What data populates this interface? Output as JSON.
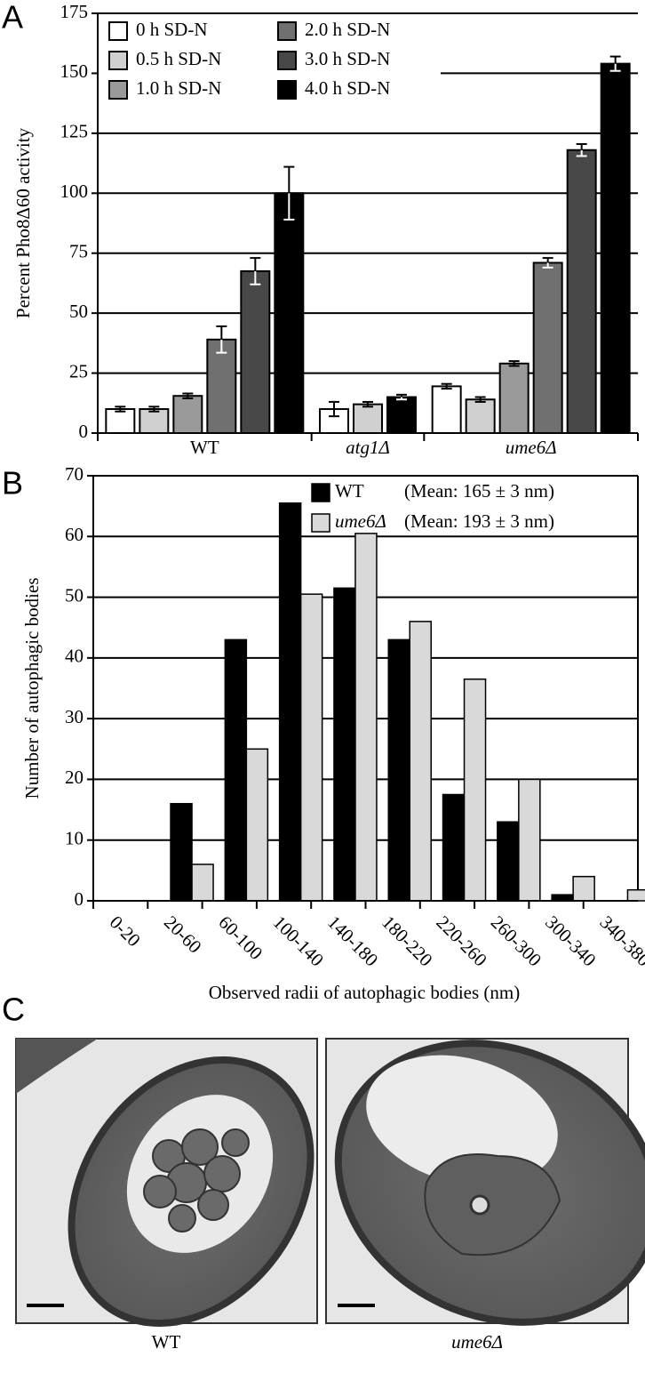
{
  "panel_labels": [
    "A",
    "B",
    "C"
  ],
  "chart_data": [
    {
      "type": "grouped_bar_error",
      "ylabel": "Percent Pho8Δ60 activity",
      "categories": [
        "WT",
        "atg1Δ",
        "ume6Δ"
      ],
      "series": [
        {
          "name": "0 h SD-N",
          "color": "#ffffff",
          "values": [
            10,
            10,
            19.5
          ],
          "errors": [
            1,
            3,
            1
          ]
        },
        {
          "name": "0.5 h SD-N",
          "color": "#d0d0d0",
          "values": [
            10,
            12,
            14
          ],
          "errors": [
            1,
            1,
            1
          ]
        },
        {
          "name": "1.0 h SD-N",
          "color": "#9a9a9a",
          "values": [
            15.5,
            null,
            29
          ],
          "errors": [
            1,
            null,
            1
          ]
        },
        {
          "name": "2.0 h SD-N",
          "color": "#707070",
          "values": [
            39,
            null,
            71
          ],
          "errors": [
            5.5,
            null,
            2
          ]
        },
        {
          "name": "3.0 h SD-N",
          "color": "#484848",
          "values": [
            67.5,
            null,
            118
          ],
          "errors": [
            5.5,
            null,
            2.5
          ]
        },
        {
          "name": "4.0 h SD-N",
          "color": "#000000",
          "values": [
            100,
            15,
            154
          ],
          "errors": [
            11,
            1,
            3
          ]
        }
      ],
      "ylim": [
        0,
        175
      ],
      "yticks": [
        0,
        25,
        50,
        75,
        100,
        125,
        150,
        175
      ],
      "grid": true,
      "legend": "upper left"
    },
    {
      "type": "bar",
      "xlabel": "Observed radii of autophagic bodies (nm)",
      "ylabel": "Number of autophagic bodies",
      "categories": [
        "0-20",
        "20-60",
        "60-100",
        "100-140",
        "140-180",
        "180-220",
        "220-260",
        "260-300",
        "300-340",
        "340-380"
      ],
      "series": [
        {
          "name": "WT",
          "note": "(Mean: 165 ± 3 nm)",
          "color": "#000000",
          "values": [
            0,
            16,
            43,
            65.5,
            51.5,
            43,
            17.5,
            13,
            1,
            0
          ]
        },
        {
          "name": "ume6Δ",
          "note": "(Mean: 193 ± 3 nm)",
          "color": "#d9d9d9",
          "values": [
            0,
            6,
            25,
            50.5,
            60.5,
            46,
            36.5,
            20,
            4,
            1.8
          ]
        }
      ],
      "ylim": [
        0,
        70
      ],
      "yticks": [
        0,
        10,
        20,
        30,
        40,
        50,
        60,
        70
      ],
      "grid": true,
      "legend": "upper right"
    }
  ],
  "micrographs": [
    {
      "caption": "WT"
    },
    {
      "caption": "ume6Δ"
    }
  ]
}
